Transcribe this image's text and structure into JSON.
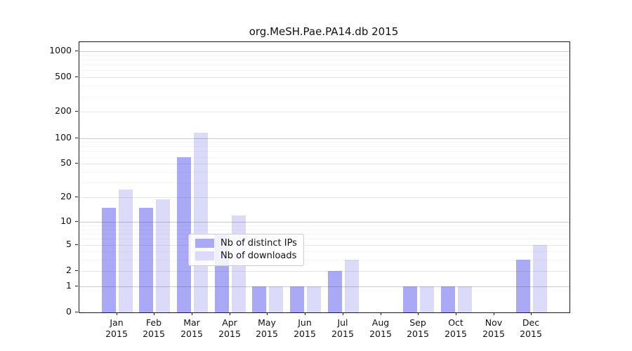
{
  "chart_data": {
    "type": "bar",
    "title": "org.MeSH.Pae.PA14.db 2015",
    "categories": [
      "Jan 2015",
      "Feb 2015",
      "Mar 2015",
      "Apr 2015",
      "May 2015",
      "Jun 2015",
      "Jul 2015",
      "Aug 2015",
      "Sep 2015",
      "Oct 2015",
      "Nov 2015",
      "Dec 2015"
    ],
    "series": [
      {
        "name": "Nb of distinct IPs",
        "color": "#a9a9f5",
        "values": [
          15,
          15,
          60,
          7,
          1,
          1,
          2,
          0,
          1,
          1,
          0,
          3
        ]
      },
      {
        "name": "Nb of downloads",
        "color": "#dbdbf9",
        "values": [
          25,
          19,
          116,
          12,
          1,
          1,
          3,
          0,
          1,
          1,
          0,
          5
        ]
      }
    ],
    "xlabel": "",
    "ylabel": "",
    "y_scale": "log1p",
    "ylim": [
      0,
      1270
    ],
    "y_ticks": [
      0,
      1,
      2,
      5,
      10,
      20,
      50,
      100,
      200,
      500,
      1000
    ],
    "y_major_gridlines": [
      1,
      10,
      100,
      1000
    ],
    "y_minor_gridlines": [
      3,
      4,
      6,
      7,
      8,
      9,
      30,
      40,
      60,
      70,
      80,
      90,
      300,
      400,
      600,
      700,
      800,
      900
    ],
    "grid": "on",
    "legend_position": "inside lower-center",
    "colors": {
      "axis": "#1a1a1a",
      "grid_major": "#c7c7c7",
      "grid_minor": "#efefef",
      "legend_border": "#cccccc",
      "background": "#ffffff"
    }
  }
}
